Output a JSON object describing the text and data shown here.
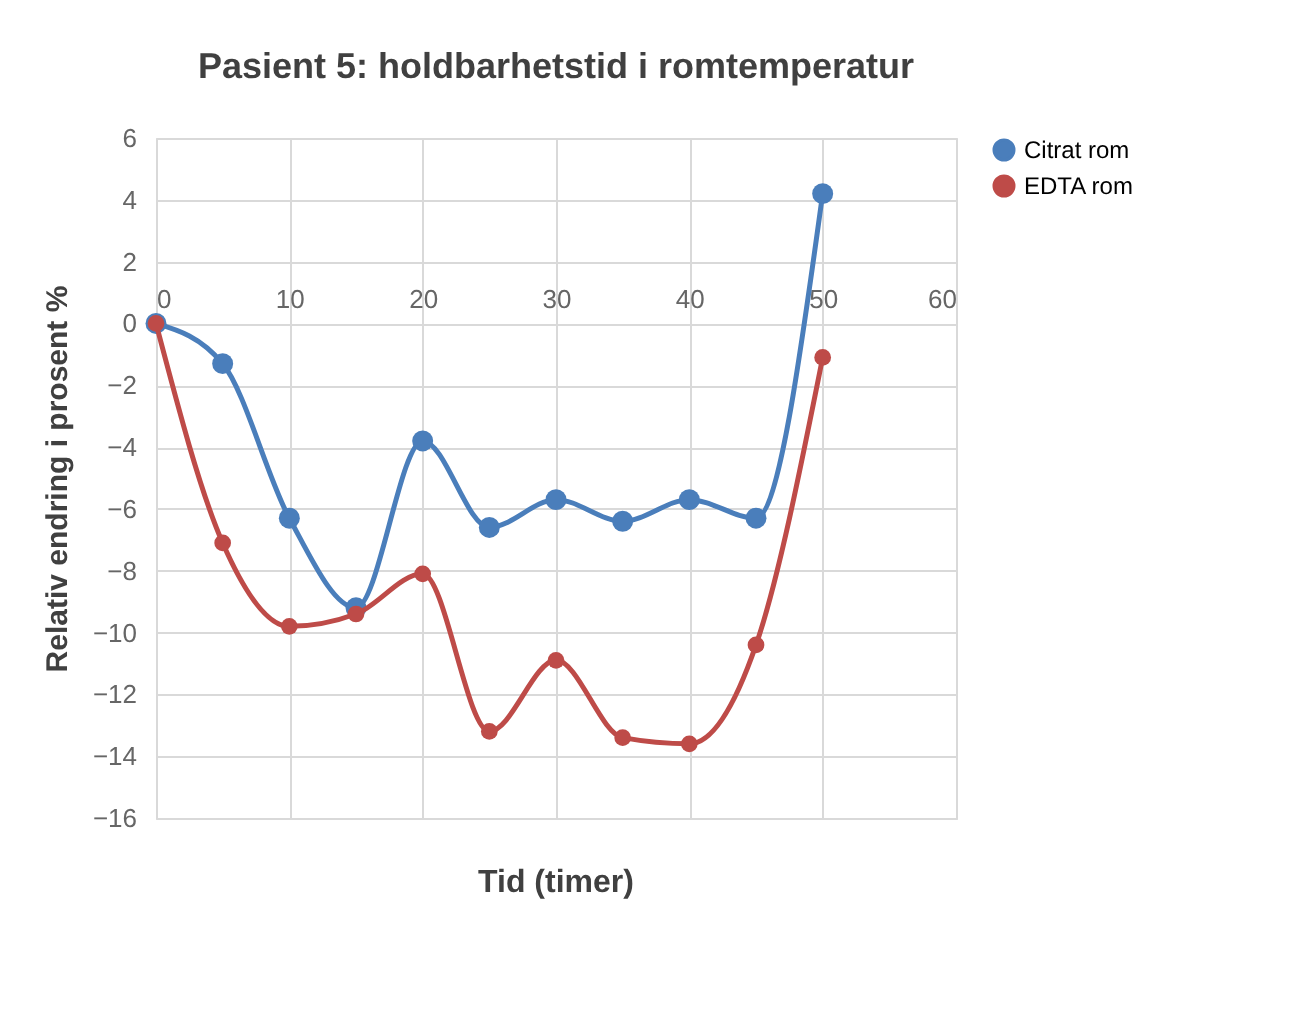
{
  "chart_data": {
    "type": "line",
    "title": "Pasient 5: holdbarhetstid i romtemperatur",
    "xlabel": "Tid (timer)",
    "ylabel": "Relativ endring i prosent %",
    "x": [
      0,
      5,
      10,
      15,
      20,
      25,
      30,
      35,
      40,
      45,
      50
    ],
    "series": [
      {
        "name": "Citrat rom",
        "color": "#4a7ebb",
        "values": [
          0,
          -1.3,
          -6.3,
          -9.2,
          -3.8,
          -6.6,
          -5.7,
          -6.4,
          -5.7,
          -6.3,
          4.2
        ]
      },
      {
        "name": "EDTA rom",
        "color": "#be4b48",
        "values": [
          0,
          -7.1,
          -9.8,
          -9.4,
          -8.1,
          -13.2,
          -10.9,
          -13.4,
          -13.6,
          -10.4,
          -1.1
        ]
      }
    ],
    "xlim": [
      0,
      60
    ],
    "xticks": [
      0,
      10,
      20,
      30,
      40,
      50,
      60
    ],
    "ylim": [
      -16,
      6
    ],
    "yticks": [
      -16,
      -14,
      -12,
      -10,
      -8,
      -6,
      -4,
      -2,
      0,
      2,
      4,
      6
    ],
    "grid": true,
    "legend": "right",
    "marker": "circle",
    "line_style": "solid"
  }
}
